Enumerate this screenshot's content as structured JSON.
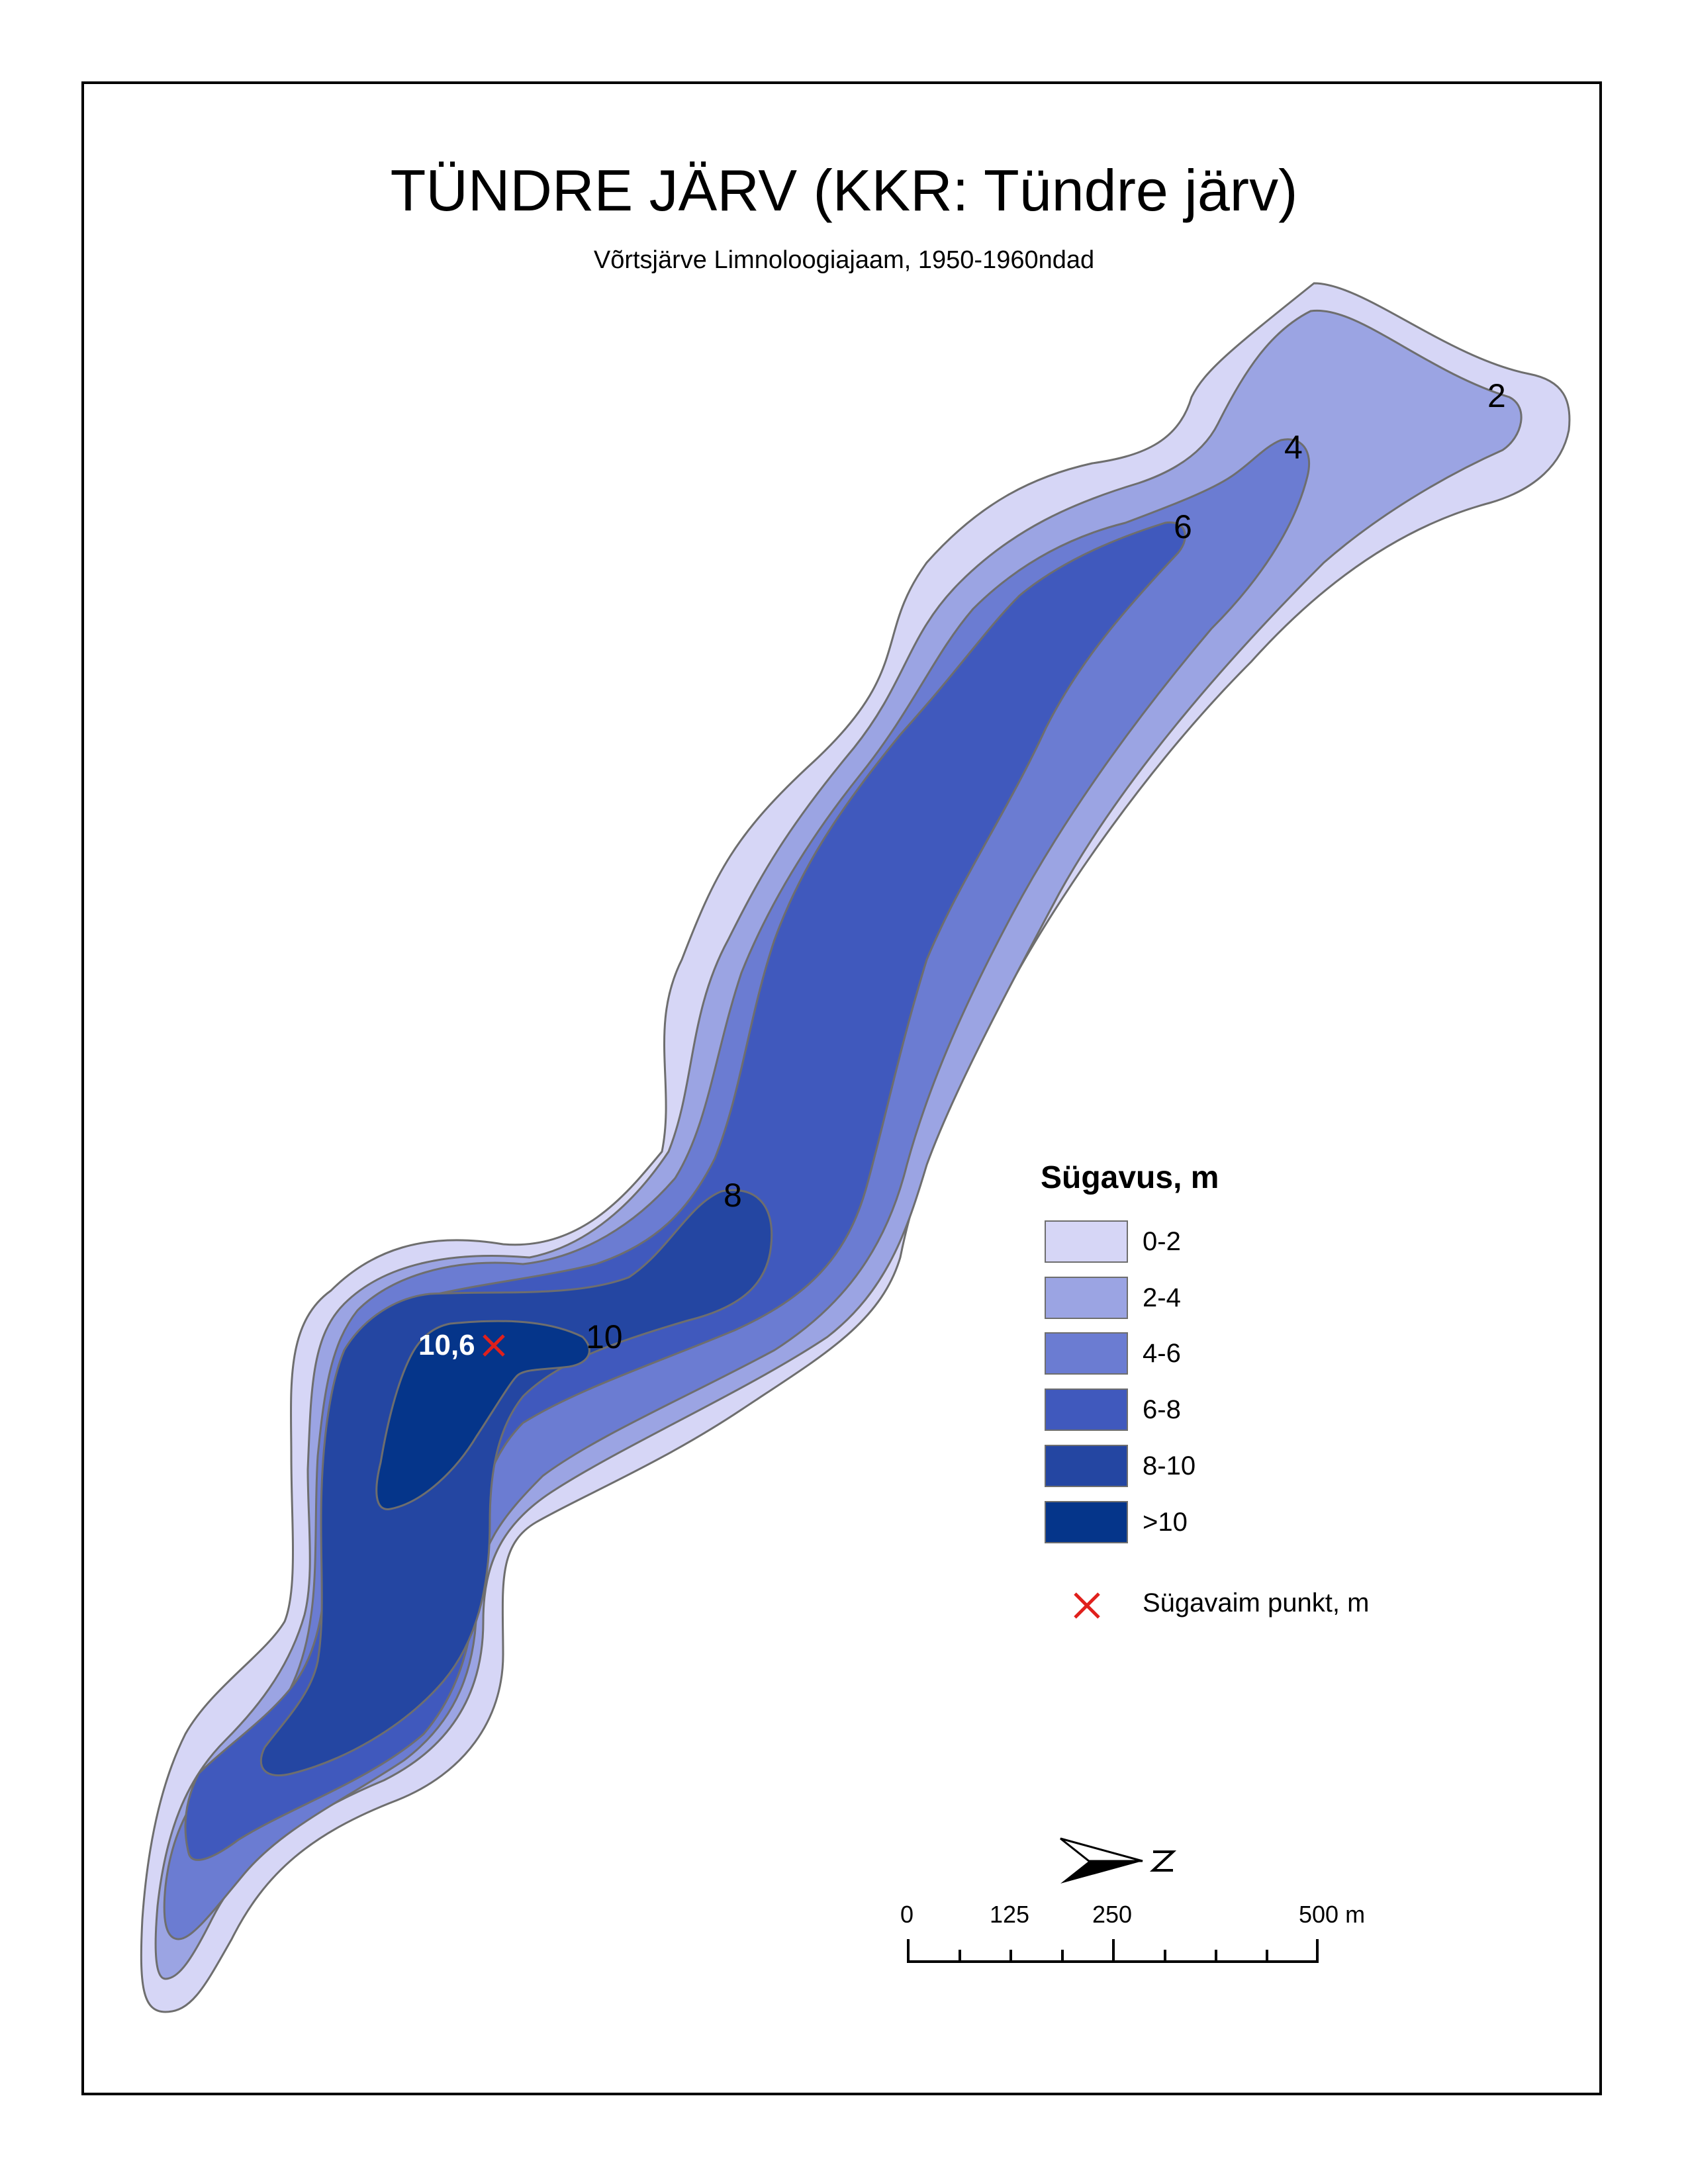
{
  "map": {
    "title": "TÜNDRE JÄRV (KKR: Tündre järv)",
    "subtitle": "Võrtsjärve Limnoloogiajaam, 1950-1960ndad"
  },
  "contour_labels": [
    "2",
    "4",
    "6",
    "8",
    "10"
  ],
  "deepest_point": {
    "depth_label": "10,6",
    "marker_color": "#e0201c"
  },
  "legend": {
    "title": "Sügavus, m",
    "classes": [
      {
        "label": "0-2",
        "color": "#d6d6f6"
      },
      {
        "label": "2-4",
        "color": "#9ba4e3"
      },
      {
        "label": "4-6",
        "color": "#6b7cd2"
      },
      {
        "label": "6-8",
        "color": "#4059bd"
      },
      {
        "label": "8-10",
        "color": "#2446a2"
      },
      {
        "label": ">10",
        "color": "#05358a"
      }
    ],
    "marker_label": "Sügavaim punkt, m"
  },
  "north_arrow": {
    "label": "N",
    "icon": "north-arrow-icon"
  },
  "scale_bar": {
    "ticks": [
      "0",
      "125",
      "250",
      "500 m"
    ]
  }
}
